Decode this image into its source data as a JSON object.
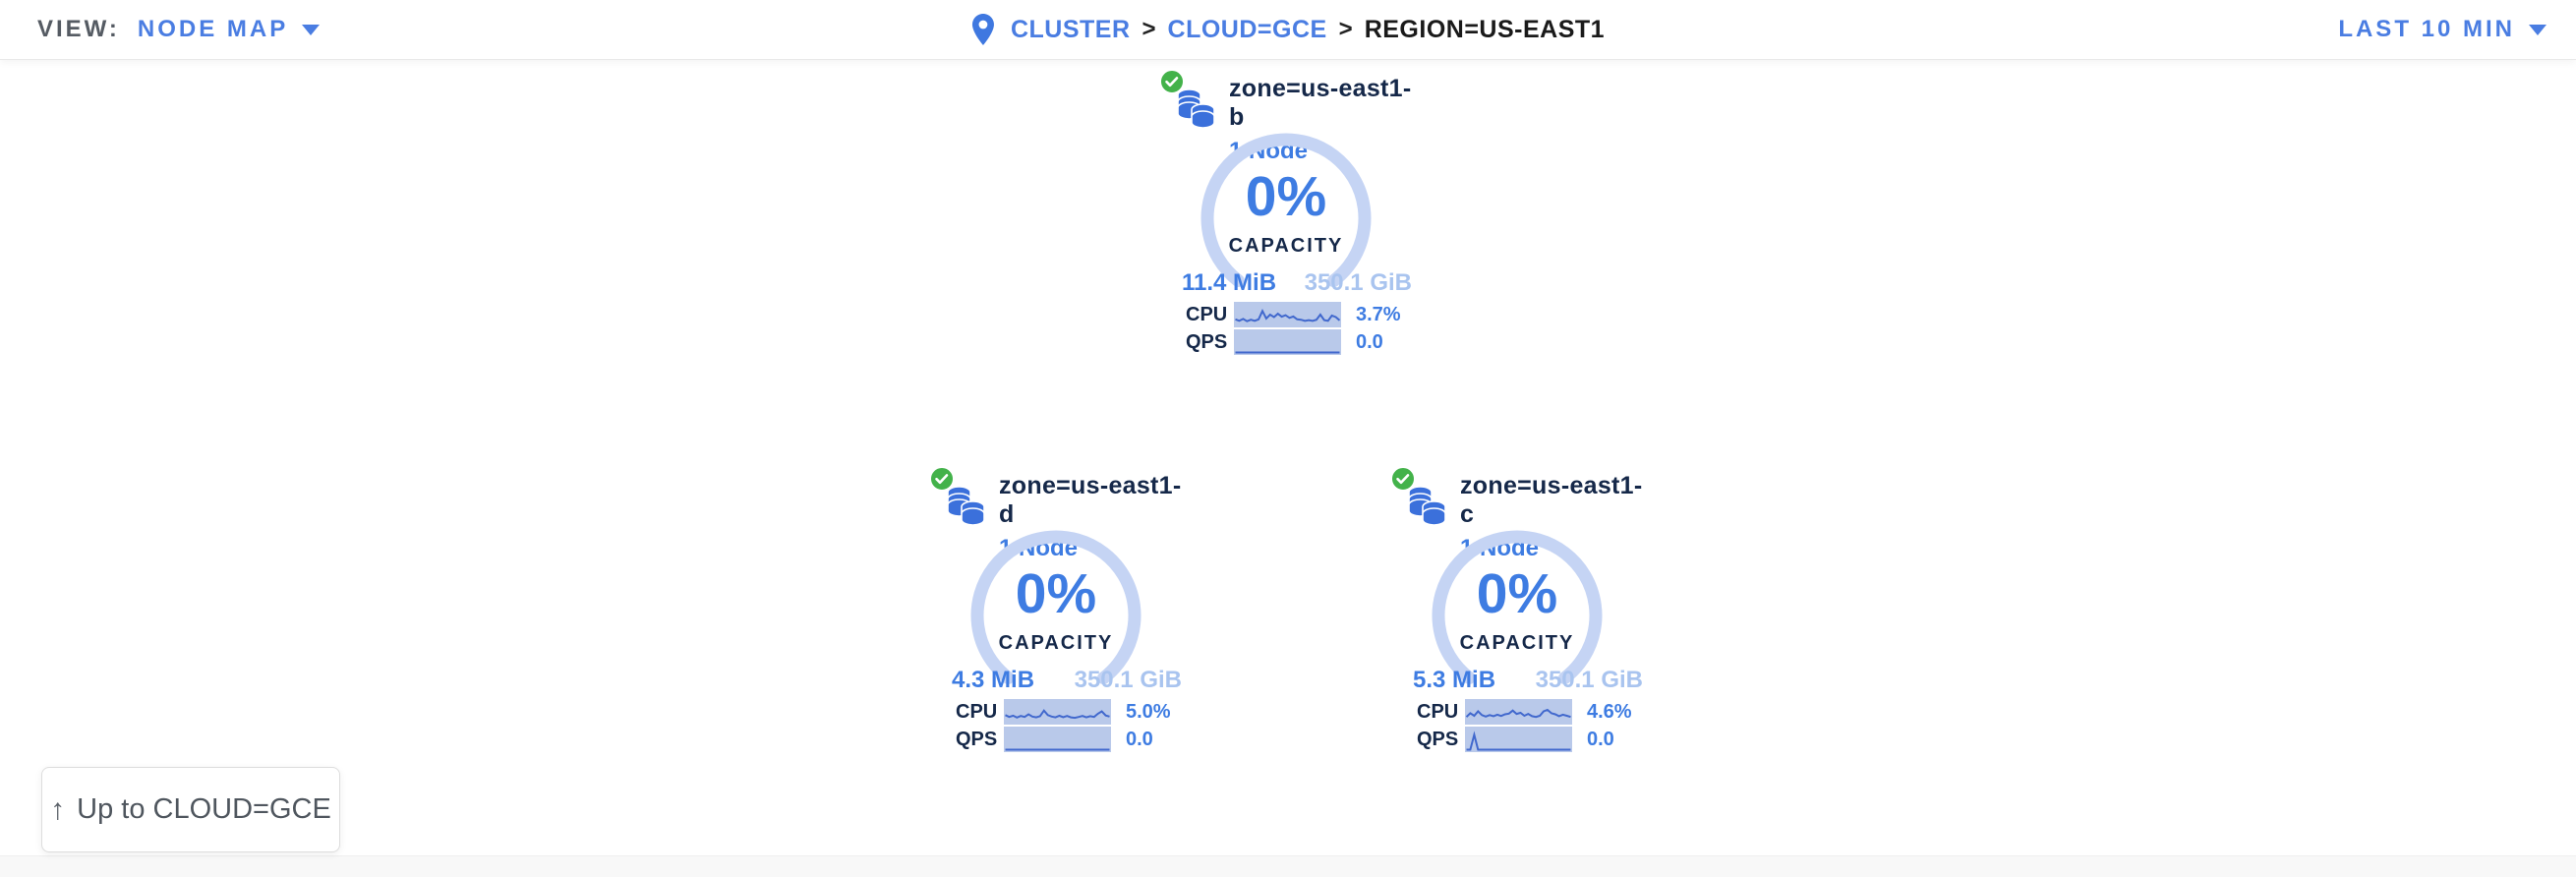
{
  "header": {
    "view_label": "VIEW:",
    "view_value": "NODE MAP",
    "separator": ">",
    "breadcrumb": [
      {
        "label": "CLUSTER"
      },
      {
        "label": "CLOUD=GCE"
      },
      {
        "label": "REGION=US-EAST1"
      }
    ],
    "time_range": "LAST 10 MIN"
  },
  "zones": [
    {
      "name": "zone=us-east1-b",
      "nodes": "1 Node",
      "status": "healthy",
      "capacity_pct": "0%",
      "capacity_label": "CAPACITY",
      "used": "11.4 MiB",
      "total": "350.1 GiB",
      "cpu_label": "CPU",
      "cpu_value": "3.7%",
      "qps_label": "QPS",
      "qps_value": "0.0",
      "cpu_spark": [
        0.3,
        0.22,
        0.32,
        0.2,
        0.28,
        0.22,
        0.3,
        0.75,
        0.35,
        0.55,
        0.42,
        0.6,
        0.44,
        0.52,
        0.38,
        0.45,
        0.3,
        0.28,
        0.22,
        0.26,
        0.22,
        0.28,
        0.55,
        0.26,
        0.22,
        0.5,
        0.42,
        0.25
      ],
      "qps_spark": [
        0,
        0,
        0,
        0,
        0,
        0,
        0,
        0,
        0,
        0,
        0,
        0,
        0,
        0,
        0,
        0,
        0,
        0,
        0,
        0,
        0,
        0,
        0,
        0,
        0,
        0,
        0,
        0
      ]
    },
    {
      "name": "zone=us-east1-d",
      "nodes": "1 Node",
      "status": "healthy",
      "capacity_pct": "0%",
      "capacity_label": "CAPACITY",
      "used": "4.3 MiB",
      "total": "350.1 GiB",
      "cpu_label": "CPU",
      "cpu_value": "5.0%",
      "qps_label": "QPS",
      "qps_value": "0.0",
      "cpu_spark": [
        0.38,
        0.28,
        0.35,
        0.25,
        0.33,
        0.28,
        0.42,
        0.3,
        0.26,
        0.32,
        0.62,
        0.38,
        0.3,
        0.26,
        0.34,
        0.27,
        0.33,
        0.26,
        0.23,
        0.28,
        0.33,
        0.26,
        0.32,
        0.28,
        0.45,
        0.58,
        0.36,
        0.3
      ],
      "qps_spark": [
        0,
        0,
        0,
        0,
        0,
        0,
        0,
        0,
        0,
        0,
        0,
        0,
        0,
        0,
        0,
        0,
        0,
        0,
        0,
        0,
        0,
        0,
        0,
        0,
        0,
        0,
        0,
        0
      ]
    },
    {
      "name": "zone=us-east1-c",
      "nodes": "1 Node",
      "status": "healthy",
      "capacity_pct": "0%",
      "capacity_label": "CAPACITY",
      "used": "5.3 MiB",
      "total": "350.1 GiB",
      "cpu_label": "CPU",
      "cpu_value": "4.6%",
      "qps_label": "QPS",
      "qps_value": "0.0",
      "cpu_spark": [
        0.28,
        0.48,
        0.34,
        0.58,
        0.38,
        0.3,
        0.38,
        0.32,
        0.4,
        0.33,
        0.42,
        0.46,
        0.62,
        0.44,
        0.5,
        0.34,
        0.44,
        0.32,
        0.28,
        0.34,
        0.58,
        0.66,
        0.48,
        0.42,
        0.32,
        0.4,
        0.34,
        0.28
      ],
      "qps_spark": [
        0,
        0,
        0.8,
        0,
        0,
        0,
        0,
        0,
        0,
        0,
        0,
        0,
        0,
        0,
        0,
        0,
        0,
        0,
        0,
        0,
        0,
        0,
        0,
        0,
        0,
        0,
        0,
        0
      ]
    }
  ],
  "up_button": {
    "arrow": "↑",
    "label": "Up to CLOUD=GCE"
  },
  "colors": {
    "accent_blue": "#3e7ce2",
    "link_blue": "#4a7de2",
    "light_blue": "#a9c4ef",
    "gauge_arc": "#c5d4f4",
    "spark_bg": "#b9c9ea",
    "spark_line": "#4168cd",
    "navy": "#152849",
    "healthy_green": "#43b24a",
    "gray_text": "#555b63"
  }
}
